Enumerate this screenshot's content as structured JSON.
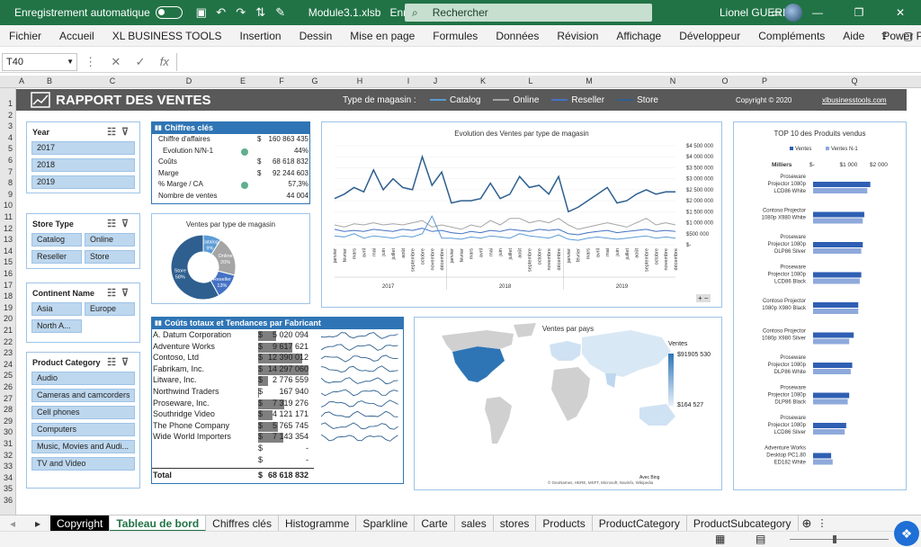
{
  "titlebar": {
    "autosave_label": "Enregistrement automatique",
    "filename": "Module3.1.xlsb",
    "saved_state": "Enregist...",
    "search_placeholder": "Rechercher",
    "user": "Lionel GUERI"
  },
  "menu": [
    "Fichier",
    "Accueil",
    "XL BUSINESS TOOLS",
    "Insertion",
    "Dessin",
    "Mise en page",
    "Formules",
    "Données",
    "Révision",
    "Affichage",
    "Développeur",
    "Compléments",
    "Aide",
    "Power Pivot"
  ],
  "formula": {
    "cell_ref": "T40",
    "value": ""
  },
  "columns": [
    "A",
    "B",
    "C",
    "D",
    "E",
    "F",
    "G",
    "H",
    "I",
    "J",
    "K",
    "L",
    "M",
    "N",
    "O",
    "P",
    "Q"
  ],
  "rows": [
    "1",
    "2",
    "3",
    "4",
    "5",
    "6",
    "7",
    "8",
    "9",
    "10",
    "11",
    "12",
    "13",
    "14",
    "15",
    "16",
    "17",
    "18",
    "19",
    "20",
    "21",
    "22",
    "23",
    "24",
    "25",
    "26",
    "27",
    "28",
    "29",
    "30",
    "31",
    "32",
    "33",
    "34",
    "35",
    "36"
  ],
  "banner": {
    "title": "RAPPORT DES VENTES",
    "store_type_label": "Type de magasin :",
    "legend": [
      {
        "name": "Catalog",
        "color": "#5b9bd5"
      },
      {
        "name": "Online",
        "color": "#a5a5a5"
      },
      {
        "name": "Reseller",
        "color": "#4472c4"
      },
      {
        "name": "Store",
        "color": "#2e5f8f"
      }
    ],
    "copyright": "Copyright © 2020",
    "site": "xlbusinesstools.com"
  },
  "slicers": {
    "year": {
      "title": "Year",
      "items": [
        "2017",
        "2018",
        "2019"
      ]
    },
    "store_type": {
      "title": "Store Type",
      "items": [
        "Catalog",
        "Online",
        "Reseller",
        "Store"
      ]
    },
    "continent": {
      "title": "Continent Name",
      "items": [
        "Asia",
        "Europe",
        "North A..."
      ]
    },
    "category": {
      "title": "Product Category",
      "items": [
        "Audio",
        "Cameras and camcorders",
        "Cell phones",
        "Computers",
        "Music, Movies and Audi...",
        "TV and Video"
      ]
    }
  },
  "kpi": {
    "title": "Chiffres clés",
    "rows": [
      {
        "label": "Chiffre d'affaires",
        "cur": "$",
        "value": "160 863 435"
      },
      {
        "label": "Evolution N/N-1",
        "cur": "",
        "value": "44%"
      },
      {
        "label": "Coûts",
        "cur": "$",
        "value": "68 618 832"
      },
      {
        "label": "Marge",
        "cur": "$",
        "value": "92 244 603"
      },
      {
        "label": "% Marge / CA",
        "cur": "",
        "value": "57,3%"
      },
      {
        "label": "Nombre de ventes",
        "cur": "",
        "value": "44 004"
      }
    ]
  },
  "donut": {
    "title": "Ventes par type de magasin",
    "slices": [
      {
        "label": "Catalog",
        "pct": "9%",
        "value": 9,
        "color": "#5b9bd5"
      },
      {
        "label": "Online",
        "pct": "20%",
        "value": 20,
        "color": "#a5a5a5"
      },
      {
        "label": "Reseller",
        "pct": "13%",
        "value": 13,
        "color": "#4472c4"
      },
      {
        "label": "Store",
        "pct": "58%",
        "value": 58,
        "color": "#2e5f8f"
      }
    ]
  },
  "manufacturers": {
    "title": "Coûts totaux et Tendances par Fabricant",
    "total_label": "Total",
    "total_cur": "$",
    "total_value": "68 618 832",
    "rows": [
      {
        "name": "A. Datum Corporation",
        "cur": "$",
        "value": "5 020 094",
        "bar": 0.35
      },
      {
        "name": "Adventure Works",
        "cur": "$",
        "value": "9 617 621",
        "bar": 0.67
      },
      {
        "name": "Contoso, Ltd",
        "cur": "$",
        "value": "12 390 012",
        "bar": 0.87
      },
      {
        "name": "Fabrikam, Inc.",
        "cur": "$",
        "value": "14 297 060",
        "bar": 1.0
      },
      {
        "name": "Litware, Inc.",
        "cur": "$",
        "value": "2 776 559",
        "bar": 0.19
      },
      {
        "name": "Northwind Traders",
        "cur": "$",
        "value": "167 940",
        "bar": 0.01
      },
      {
        "name": "Proseware, Inc.",
        "cur": "$",
        "value": "7 319 276",
        "bar": 0.51
      },
      {
        "name": "Southridge Video",
        "cur": "$",
        "value": "4 121 171",
        "bar": 0.29
      },
      {
        "name": "The Phone Company",
        "cur": "$",
        "value": "5 765 745",
        "bar": 0.4
      },
      {
        "name": "Wide World Importers",
        "cur": "$",
        "value": "7 143 354",
        "bar": 0.5
      },
      {
        "name": "",
        "cur": "$",
        "value": "-",
        "bar": 0
      },
      {
        "name": "",
        "cur": "$",
        "value": "-",
        "bar": 0
      }
    ]
  },
  "line_chart": {
    "title": "Evolution des Ventes par type de magasin",
    "yticks": [
      "$4 500 000",
      "$4 000 000",
      "$3 500 000",
      "$3 000 000",
      "$2 500 000",
      "$2 000 000",
      "$1 500 000",
      "$1 000 000",
      "$500 000",
      "$-"
    ],
    "months": [
      "janvier",
      "février",
      "mars",
      "avril",
      "mai",
      "juin",
      "juillet",
      "août",
      "septembre",
      "octobre",
      "novembre",
      "décembre"
    ],
    "years": [
      "2017",
      "2018",
      "2019"
    ]
  },
  "chart_data": [
    {
      "type": "line",
      "title": "Evolution des Ventes par type de magasin",
      "ylim": [
        0,
        4500000
      ],
      "series": [
        {
          "name": "Store",
          "color": "#2e5f8f",
          "values": [
            2100000,
            2300000,
            2600000,
            2400000,
            3400000,
            2500000,
            3000000,
            2600000,
            2500000,
            4000000,
            2700000,
            3300000,
            1900000,
            2000000,
            2000000,
            2100000,
            2800000,
            2100000,
            2300000,
            3100000,
            2600000,
            2700000,
            2300000,
            3100000,
            1500000,
            1700000,
            2000000,
            2300000,
            2600000,
            1900000,
            2000000,
            2300000,
            2500000,
            2300000,
            2400000,
            2400000
          ]
        },
        {
          "name": "Online",
          "color": "#a5a5a5",
          "values": [
            900000,
            800000,
            950000,
            900000,
            1000000,
            900000,
            950000,
            900000,
            1000000,
            1100000,
            800000,
            900000,
            800000,
            700000,
            900000,
            800000,
            1100000,
            900000,
            1200000,
            1200000,
            1000000,
            1100000,
            1000000,
            1200000,
            900000,
            700000,
            800000,
            900000,
            1000000,
            900000,
            800000,
            1000000,
            1200000,
            900000,
            1000000,
            900000
          ]
        },
        {
          "name": "Reseller",
          "color": "#4472c4",
          "values": [
            700000,
            600000,
            650000,
            600000,
            700000,
            650000,
            600000,
            700000,
            650000,
            750000,
            600000,
            650000,
            550000,
            500000,
            600000,
            550000,
            650000,
            600000,
            700000,
            650000,
            600000,
            700000,
            650000,
            700000,
            500000,
            450000,
            550000,
            600000,
            650000,
            550000,
            600000,
            650000,
            700000,
            600000,
            650000,
            600000
          ]
        },
        {
          "name": "Catalog",
          "color": "#5b9bd5",
          "values": [
            400000,
            350000,
            500000,
            300000,
            400000,
            350000,
            300000,
            400000,
            350000,
            500000,
            1300000,
            300000,
            300000,
            250000,
            350000,
            300000,
            400000,
            350000,
            300000,
            500000,
            400000,
            350000,
            300000,
            450000,
            250000,
            200000,
            300000,
            350000,
            300000,
            250000,
            300000,
            350000,
            400000,
            300000,
            350000,
            300000
          ]
        }
      ]
    },
    {
      "type": "pie",
      "title": "Ventes par type de magasin",
      "categories": [
        "Catalog",
        "Online",
        "Reseller",
        "Store"
      ],
      "values": [
        9,
        20,
        13,
        58
      ]
    },
    {
      "type": "bar",
      "title": "TOP 10 des Produits vendus",
      "ylabel": "Milliers",
      "xticks": [
        "$-",
        "$1 000",
        "$2 000"
      ],
      "categories": [
        "Proseware Projector 1080p LCD86 White",
        "Contoso Projector 1080p X980 White",
        "Proseware Projector 1080p DLP86 Silver",
        "Proseware Projector 1080p LCD86 Black",
        "Contoso Projector 1080p X980 Black",
        "Contoso Projector 1080p X980 Silver",
        "Proseware Projector 1080p DLP86 White",
        "Proseware Projector 1080p DLP86 Black",
        "Proseware Projector 1080p LCD86 Silver",
        "Adventure Works Desktop PC1.80 ED182 White"
      ],
      "series": [
        {
          "name": "Ventes",
          "color": "#2f5fb3",
          "values": [
            1900,
            1700,
            1650,
            1600,
            1500,
            1350,
            1300,
            1200,
            1100,
            600
          ]
        },
        {
          "name": "Ventes N-1",
          "color": "#8ea9db",
          "values": [
            1800,
            1650,
            1600,
            1550,
            1500,
            1200,
            1250,
            1150,
            1050,
            650
          ]
        }
      ]
    }
  ],
  "map": {
    "title": "Ventes par pays",
    "legend_title": "Ventes",
    "max": "$91905 530",
    "min": "$164 527",
    "credit1": "Avec Bing",
    "credit2": "© GeoNames, HERE, MSFT, Microsoft, Navinfo, Wikipedia"
  },
  "top10": {
    "title": "TOP 10 des Produits vendus",
    "legend": [
      "Ventes",
      "Ventes N-1"
    ],
    "unit": "Milliers",
    "ticks": [
      "$-",
      "$1 000",
      "$2 000"
    ]
  },
  "sheet_tabs": [
    "Copyright",
    "Tableau de bord",
    "Chiffres clés",
    "Histogramme",
    "Sparkline",
    "Carte",
    "sales",
    "stores",
    "Products",
    "ProductCategory",
    "ProductSubcategory"
  ]
}
